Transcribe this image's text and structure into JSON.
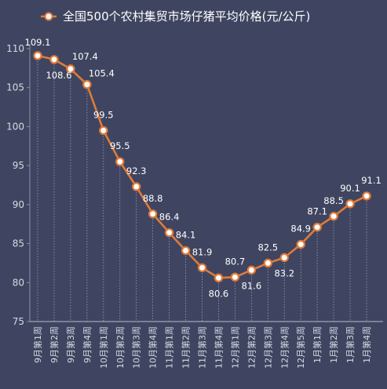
{
  "chart_data": {
    "type": "line",
    "legend": "top-center",
    "grid": false,
    "ylim": [
      75,
      110
    ],
    "yticks": [
      75,
      80,
      85,
      90,
      95,
      100,
      105,
      110
    ],
    "categories": [
      "9月第1周",
      "9月第2周",
      "9月第3周",
      "9月第4周",
      "10月第1周",
      "10月第2周",
      "10月第3周",
      "10月第4周",
      "11月第1周",
      "11月第2周",
      "11月第3周",
      "11月第4周",
      "12月第1周",
      "12月第2周",
      "12月第3周",
      "12月第4周",
      "12月第5周",
      "1月第1周",
      "1月第2周",
      "1月第3周",
      "1月第4周"
    ],
    "series": [
      {
        "name": "全国500个农村集贸市场仔猪平均价格(元/公斤)",
        "color": "#e07b39",
        "values": [
          109.1,
          108.6,
          107.4,
          105.4,
          99.5,
          95.5,
          92.3,
          88.8,
          86.4,
          84.1,
          81.9,
          80.6,
          80.7,
          81.6,
          82.5,
          83.2,
          84.9,
          87.1,
          88.5,
          90.1,
          91.1
        ]
      }
    ]
  }
}
